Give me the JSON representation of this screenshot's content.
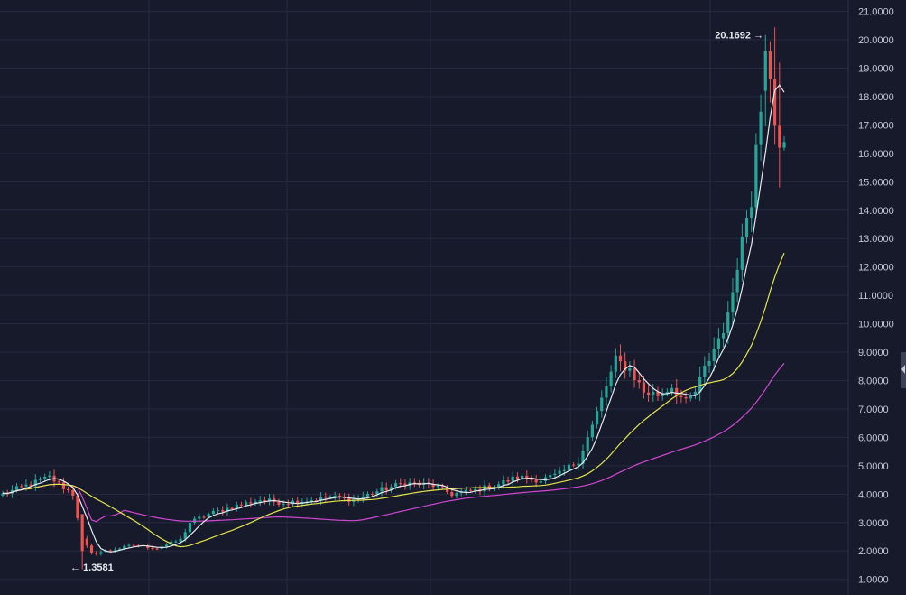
{
  "chart_data": {
    "type": "candlestick",
    "title": "",
    "xlabel": "",
    "ylabel": "",
    "ylim": [
      0.45,
      21.4
    ],
    "y_ticks": [
      "1.0000",
      "2.0000",
      "3.0000",
      "4.0000",
      "5.0000",
      "6.0000",
      "7.0000",
      "8.0000",
      "9.0000",
      "10.0000",
      "11.0000",
      "12.0000",
      "13.0000",
      "14.0000",
      "15.0000",
      "16.0000",
      "17.0000",
      "18.0000",
      "19.0000",
      "20.0000",
      "21.0000"
    ],
    "annotations": [
      {
        "name": "high-marker",
        "text": "20.1692 →"
      },
      {
        "name": "low-marker",
        "text": "← 1.3581"
      }
    ],
    "colors": {
      "background": "#161a2b",
      "grid": "#242a3e",
      "up": "#26a69a",
      "down": "#ef5350",
      "ma_fast": "#e8e8ee",
      "ma_mid": "#e3e34a",
      "ma_slow": "#d147d1"
    },
    "key_points": [
      [
        0,
        4.0
      ],
      [
        5,
        4.3
      ],
      [
        10,
        4.6
      ],
      [
        15,
        4.0
      ],
      [
        17,
        2.4
      ],
      [
        19,
        1.9
      ],
      [
        22,
        2.0
      ],
      [
        28,
        2.2
      ],
      [
        33,
        2.1
      ],
      [
        38,
        2.4
      ],
      [
        40,
        3.0
      ],
      [
        44,
        3.3
      ],
      [
        50,
        3.6
      ],
      [
        55,
        3.8
      ],
      [
        60,
        3.7
      ],
      [
        66,
        3.8
      ],
      [
        70,
        3.9
      ],
      [
        75,
        3.8
      ],
      [
        80,
        4.1
      ],
      [
        86,
        4.4
      ],
      [
        92,
        4.3
      ],
      [
        96,
        4.0
      ],
      [
        100,
        4.1
      ],
      [
        105,
        4.3
      ],
      [
        110,
        4.6
      ],
      [
        115,
        4.5
      ],
      [
        119,
        4.7
      ],
      [
        123,
        5.2
      ],
      [
        126,
        6.4
      ],
      [
        129,
        7.8
      ],
      [
        131,
        8.7
      ],
      [
        134,
        8.4
      ],
      [
        137,
        7.6
      ],
      [
        140,
        7.5
      ],
      [
        143,
        7.8
      ],
      [
        146,
        7.2
      ],
      [
        148,
        7.6
      ],
      [
        150,
        8.4
      ],
      [
        153,
        9.5
      ],
      [
        155,
        10.2
      ],
      [
        157,
        12.2
      ],
      [
        159,
        13.8
      ],
      [
        160,
        14.4
      ],
      [
        161,
        16.6
      ],
      [
        162,
        17.8
      ],
      [
        163,
        18.9
      ],
      [
        164,
        19.6
      ],
      [
        165,
        18.7
      ],
      [
        166,
        17.1
      ],
      [
        167,
        16.3
      ]
    ]
  }
}
